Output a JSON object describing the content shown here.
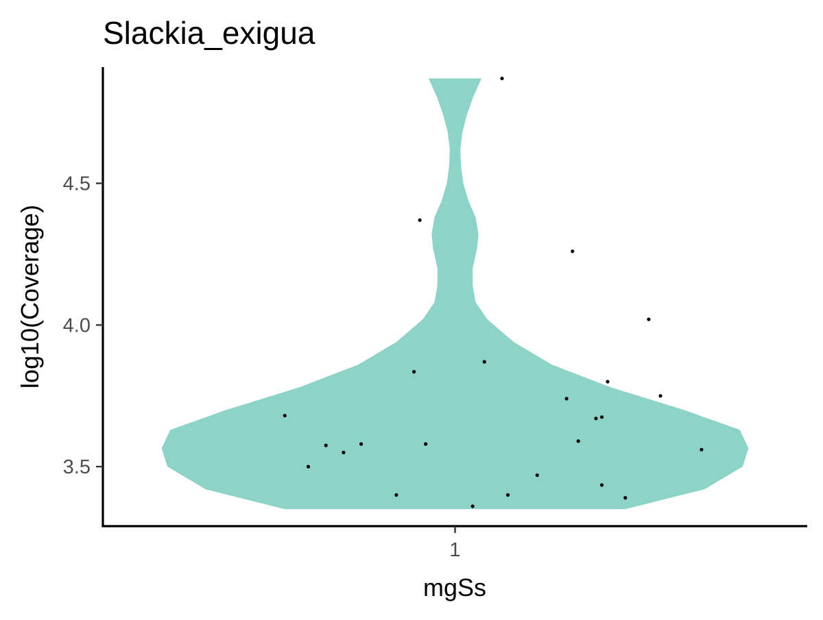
{
  "chart_data": {
    "type": "violin",
    "title": "Slackia_exigua",
    "xlabel": "mgSs",
    "ylabel": "log10(Coverage)",
    "categories": [
      "1"
    ],
    "ylim": [
      3.29,
      4.91
    ],
    "yticks": [
      3.5,
      4.0,
      4.5
    ],
    "ytick_labels": [
      "3.5",
      "4.0",
      "4.5"
    ],
    "grid": false,
    "legend": "none",
    "fill_color": "#8ED3C7",
    "point_color": "#000000",
    "violin_density": [
      {
        "y": 3.35,
        "half_width": 0.58
      },
      {
        "y": 3.42,
        "half_width": 0.85
      },
      {
        "y": 3.5,
        "half_width": 0.98
      },
      {
        "y": 3.565,
        "half_width": 1.0
      },
      {
        "y": 3.63,
        "half_width": 0.97
      },
      {
        "y": 3.7,
        "half_width": 0.78
      },
      {
        "y": 3.78,
        "half_width": 0.53
      },
      {
        "y": 3.86,
        "half_width": 0.33
      },
      {
        "y": 3.94,
        "half_width": 0.2
      },
      {
        "y": 4.02,
        "half_width": 0.11
      },
      {
        "y": 4.08,
        "half_width": 0.07
      },
      {
        "y": 4.14,
        "half_width": 0.06
      },
      {
        "y": 4.2,
        "half_width": 0.06
      },
      {
        "y": 4.27,
        "half_width": 0.075
      },
      {
        "y": 4.32,
        "half_width": 0.08
      },
      {
        "y": 4.38,
        "half_width": 0.07
      },
      {
        "y": 4.44,
        "half_width": 0.045
      },
      {
        "y": 4.5,
        "half_width": 0.028
      },
      {
        "y": 4.56,
        "half_width": 0.02
      },
      {
        "y": 4.62,
        "half_width": 0.018
      },
      {
        "y": 4.68,
        "half_width": 0.025
      },
      {
        "y": 4.74,
        "half_width": 0.04
      },
      {
        "y": 4.8,
        "half_width": 0.06
      },
      {
        "y": 4.87,
        "half_width": 0.09
      }
    ],
    "points": [
      {
        "x": 1.08,
        "y": 4.87
      },
      {
        "x": 0.94,
        "y": 4.37
      },
      {
        "x": 1.2,
        "y": 4.26
      },
      {
        "x": 1.33,
        "y": 4.02
      },
      {
        "x": 1.05,
        "y": 3.87
      },
      {
        "x": 0.93,
        "y": 3.835
      },
      {
        "x": 1.26,
        "y": 3.8
      },
      {
        "x": 1.35,
        "y": 3.75
      },
      {
        "x": 1.19,
        "y": 3.74
      },
      {
        "x": 1.25,
        "y": 3.675
      },
      {
        "x": 1.24,
        "y": 3.67
      },
      {
        "x": 0.71,
        "y": 3.68
      },
      {
        "x": 1.21,
        "y": 3.59
      },
      {
        "x": 0.84,
        "y": 3.58
      },
      {
        "x": 0.95,
        "y": 3.58
      },
      {
        "x": 0.78,
        "y": 3.575
      },
      {
        "x": 1.42,
        "y": 3.56
      },
      {
        "x": 0.81,
        "y": 3.55
      },
      {
        "x": 0.75,
        "y": 3.5
      },
      {
        "x": 1.14,
        "y": 3.47
      },
      {
        "x": 1.25,
        "y": 3.435
      },
      {
        "x": 0.9,
        "y": 3.4
      },
      {
        "x": 1.09,
        "y": 3.4
      },
      {
        "x": 1.29,
        "y": 3.39
      },
      {
        "x": 1.03,
        "y": 3.36
      }
    ]
  }
}
